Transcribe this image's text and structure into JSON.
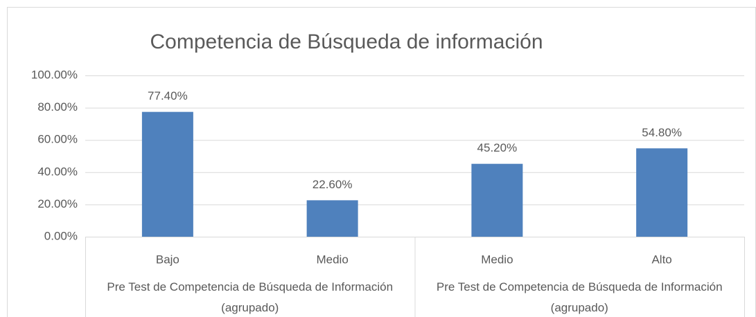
{
  "chart_data": {
    "type": "bar",
    "title": "Competencia de Búsqueda de información",
    "categories": [
      "Bajo",
      "Medio",
      "Medio",
      "Alto"
    ],
    "category_groups": [
      "Pre Test de Competencia de Búsqueda de Información (agrupado)",
      "Pre Test de Competencia de Búsqueda de Información (agrupado)"
    ],
    "values": [
      77.4,
      22.6,
      45.2,
      54.8
    ],
    "value_labels": [
      "77.40%",
      "22.60%",
      "45.20%",
      "54.80%"
    ],
    "color": "#4f81bd",
    "ylim": [
      0,
      100
    ],
    "yticks": [
      {
        "value": 0,
        "label": "0.00%"
      },
      {
        "value": 20,
        "label": "20.00%"
      },
      {
        "value": 40,
        "label": "40.00%"
      },
      {
        "value": 60,
        "label": "60.00%"
      },
      {
        "value": 80,
        "label": "80.00%"
      },
      {
        "value": 100,
        "label": "100.00%"
      }
    ],
    "grid": true
  }
}
